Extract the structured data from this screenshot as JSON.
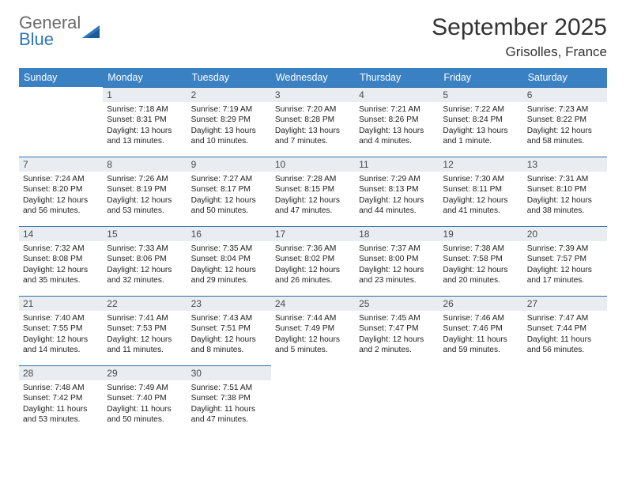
{
  "brand": {
    "word1": "General",
    "word2": "Blue",
    "tri_color": "#2f74b5",
    "word1_color": "#6b6b6b",
    "word2_color": "#2f74b5"
  },
  "title": "September 2025",
  "location": "Grisolles, France",
  "colors": {
    "header_bg": "#3a81c4",
    "header_text": "#ffffff",
    "daynum_bg": "#e9edf1",
    "daynum_border": "#2f6fa8",
    "text": "#222222"
  },
  "weekdays": [
    "Sunday",
    "Monday",
    "Tuesday",
    "Wednesday",
    "Thursday",
    "Friday",
    "Saturday"
  ],
  "start_offset": 1,
  "days": [
    {
      "n": 1,
      "sunrise": "7:18 AM",
      "sunset": "8:31 PM",
      "daylight": "13 hours and 13 minutes."
    },
    {
      "n": 2,
      "sunrise": "7:19 AM",
      "sunset": "8:29 PM",
      "daylight": "13 hours and 10 minutes."
    },
    {
      "n": 3,
      "sunrise": "7:20 AM",
      "sunset": "8:28 PM",
      "daylight": "13 hours and 7 minutes."
    },
    {
      "n": 4,
      "sunrise": "7:21 AM",
      "sunset": "8:26 PM",
      "daylight": "13 hours and 4 minutes."
    },
    {
      "n": 5,
      "sunrise": "7:22 AM",
      "sunset": "8:24 PM",
      "daylight": "13 hours and 1 minute."
    },
    {
      "n": 6,
      "sunrise": "7:23 AM",
      "sunset": "8:22 PM",
      "daylight": "12 hours and 58 minutes."
    },
    {
      "n": 7,
      "sunrise": "7:24 AM",
      "sunset": "8:20 PM",
      "daylight": "12 hours and 56 minutes."
    },
    {
      "n": 8,
      "sunrise": "7:26 AM",
      "sunset": "8:19 PM",
      "daylight": "12 hours and 53 minutes."
    },
    {
      "n": 9,
      "sunrise": "7:27 AM",
      "sunset": "8:17 PM",
      "daylight": "12 hours and 50 minutes."
    },
    {
      "n": 10,
      "sunrise": "7:28 AM",
      "sunset": "8:15 PM",
      "daylight": "12 hours and 47 minutes."
    },
    {
      "n": 11,
      "sunrise": "7:29 AM",
      "sunset": "8:13 PM",
      "daylight": "12 hours and 44 minutes."
    },
    {
      "n": 12,
      "sunrise": "7:30 AM",
      "sunset": "8:11 PM",
      "daylight": "12 hours and 41 minutes."
    },
    {
      "n": 13,
      "sunrise": "7:31 AM",
      "sunset": "8:10 PM",
      "daylight": "12 hours and 38 minutes."
    },
    {
      "n": 14,
      "sunrise": "7:32 AM",
      "sunset": "8:08 PM",
      "daylight": "12 hours and 35 minutes."
    },
    {
      "n": 15,
      "sunrise": "7:33 AM",
      "sunset": "8:06 PM",
      "daylight": "12 hours and 32 minutes."
    },
    {
      "n": 16,
      "sunrise": "7:35 AM",
      "sunset": "8:04 PM",
      "daylight": "12 hours and 29 minutes."
    },
    {
      "n": 17,
      "sunrise": "7:36 AM",
      "sunset": "8:02 PM",
      "daylight": "12 hours and 26 minutes."
    },
    {
      "n": 18,
      "sunrise": "7:37 AM",
      "sunset": "8:00 PM",
      "daylight": "12 hours and 23 minutes."
    },
    {
      "n": 19,
      "sunrise": "7:38 AM",
      "sunset": "7:58 PM",
      "daylight": "12 hours and 20 minutes."
    },
    {
      "n": 20,
      "sunrise": "7:39 AM",
      "sunset": "7:57 PM",
      "daylight": "12 hours and 17 minutes."
    },
    {
      "n": 21,
      "sunrise": "7:40 AM",
      "sunset": "7:55 PM",
      "daylight": "12 hours and 14 minutes."
    },
    {
      "n": 22,
      "sunrise": "7:41 AM",
      "sunset": "7:53 PM",
      "daylight": "12 hours and 11 minutes."
    },
    {
      "n": 23,
      "sunrise": "7:43 AM",
      "sunset": "7:51 PM",
      "daylight": "12 hours and 8 minutes."
    },
    {
      "n": 24,
      "sunrise": "7:44 AM",
      "sunset": "7:49 PM",
      "daylight": "12 hours and 5 minutes."
    },
    {
      "n": 25,
      "sunrise": "7:45 AM",
      "sunset": "7:47 PM",
      "daylight": "12 hours and 2 minutes."
    },
    {
      "n": 26,
      "sunrise": "7:46 AM",
      "sunset": "7:46 PM",
      "daylight": "11 hours and 59 minutes."
    },
    {
      "n": 27,
      "sunrise": "7:47 AM",
      "sunset": "7:44 PM",
      "daylight": "11 hours and 56 minutes."
    },
    {
      "n": 28,
      "sunrise": "7:48 AM",
      "sunset": "7:42 PM",
      "daylight": "11 hours and 53 minutes."
    },
    {
      "n": 29,
      "sunrise": "7:49 AM",
      "sunset": "7:40 PM",
      "daylight": "11 hours and 50 minutes."
    },
    {
      "n": 30,
      "sunrise": "7:51 AM",
      "sunset": "7:38 PM",
      "daylight": "11 hours and 47 minutes."
    }
  ],
  "labels": {
    "sunrise_prefix": "Sunrise: ",
    "sunset_prefix": "Sunset: ",
    "daylight_prefix": "Daylight: "
  }
}
